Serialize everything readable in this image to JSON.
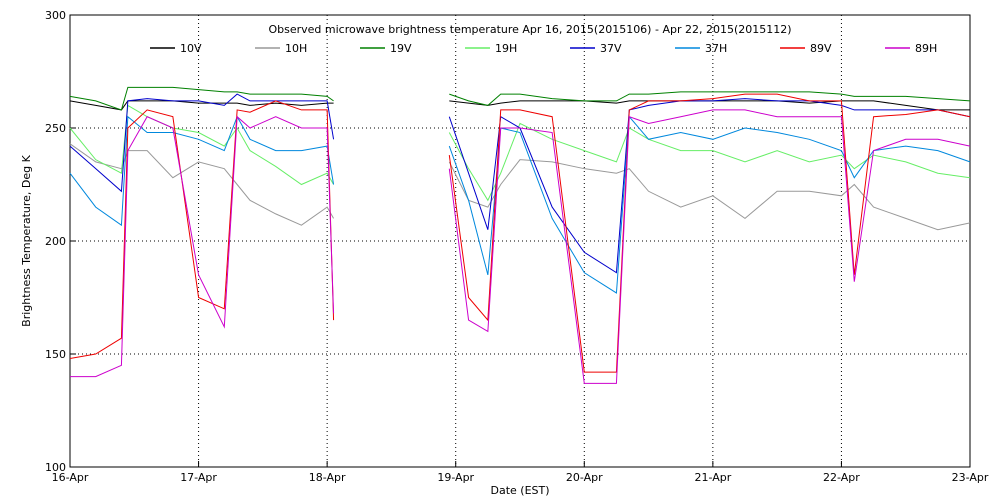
{
  "chart_data": {
    "type": "line",
    "title": "Observed microwave brightness temperature Apr 16, 2015(2015106) - Apr 22, 2015(2015112)",
    "x_label": "Date (EST)",
    "y_label": "Brightness Temperature, Deg K",
    "x": [
      0,
      0.2,
      0.4,
      0.45,
      0.6,
      0.8,
      1.0,
      1.2,
      1.3,
      1.4,
      1.6,
      1.8,
      2.0,
      2.05,
      2.5,
      2.95,
      3.1,
      3.25,
      3.35,
      3.5,
      3.75,
      4.0,
      4.25,
      4.35,
      4.5,
      4.75,
      5.0,
      5.25,
      5.5,
      5.75,
      6.0,
      6.1,
      6.25,
      6.5,
      6.75,
      7.0
    ],
    "xlim": [
      0,
      7
    ],
    "xticks": [
      {
        "value": 0,
        "label": "16-Apr"
      },
      {
        "value": 1,
        "label": "17-Apr"
      },
      {
        "value": 2,
        "label": "18-Apr"
      },
      {
        "value": 3,
        "label": "19-Apr"
      },
      {
        "value": 4,
        "label": "20-Apr"
      },
      {
        "value": 5,
        "label": "21-Apr"
      },
      {
        "value": 6,
        "label": "22-Apr"
      },
      {
        "value": 7,
        "label": "23-Apr"
      }
    ],
    "ylim": [
      100,
      300
    ],
    "yticks": [
      100,
      150,
      200,
      250,
      300
    ],
    "grid": true,
    "series": [
      {
        "name": "10V",
        "color": "#000000",
        "values": [
          262,
          260,
          258,
          262,
          262,
          262,
          261,
          261,
          261,
          260,
          261,
          260,
          261,
          261,
          null,
          262,
          261,
          260,
          261,
          262,
          262,
          262,
          261,
          262,
          262,
          262,
          262,
          262,
          262,
          261,
          262,
          262,
          262,
          260,
          258,
          258
        ]
      },
      {
        "name": "10H",
        "color": "#999999",
        "values": [
          243,
          235,
          232,
          240,
          240,
          228,
          235,
          232,
          225,
          218,
          212,
          207,
          215,
          210,
          null,
          235,
          218,
          215,
          225,
          236,
          235,
          232,
          230,
          232,
          222,
          215,
          220,
          210,
          222,
          222,
          220,
          225,
          215,
          210,
          205,
          208
        ]
      },
      {
        "name": "19V",
        "color": "#008000",
        "values": [
          264,
          262,
          258,
          268,
          268,
          268,
          267,
          266,
          266,
          265,
          265,
          265,
          264,
          262,
          null,
          265,
          262,
          260,
          265,
          265,
          263,
          262,
          262,
          265,
          265,
          266,
          266,
          266,
          266,
          266,
          265,
          264,
          264,
          264,
          263,
          262
        ]
      },
      {
        "name": "19H",
        "color": "#66ee66",
        "values": [
          250,
          236,
          230,
          260,
          255,
          250,
          248,
          242,
          250,
          240,
          233,
          225,
          230,
          225,
          null,
          248,
          232,
          218,
          230,
          252,
          245,
          240,
          235,
          250,
          245,
          240,
          240,
          235,
          240,
          235,
          238,
          232,
          238,
          235,
          230,
          228
        ]
      },
      {
        "name": "37V",
        "color": "#0000cc",
        "values": [
          242,
          232,
          222,
          262,
          263,
          262,
          262,
          260,
          265,
          262,
          262,
          262,
          262,
          245,
          null,
          255,
          230,
          205,
          255,
          250,
          215,
          195,
          186,
          258,
          260,
          262,
          262,
          263,
          262,
          262,
          260,
          258,
          258,
          258,
          258,
          255
        ]
      },
      {
        "name": "37H",
        "color": "#0088dd",
        "values": [
          230,
          215,
          207,
          255,
          248,
          248,
          245,
          240,
          255,
          245,
          240,
          240,
          242,
          225,
          null,
          242,
          218,
          185,
          250,
          248,
          210,
          186,
          177,
          255,
          245,
          248,
          245,
          250,
          248,
          245,
          240,
          228,
          240,
          242,
          240,
          235
        ]
      },
      {
        "name": "89V",
        "color": "#ee0000",
        "values": [
          148,
          150,
          157,
          250,
          258,
          255,
          175,
          170,
          258,
          257,
          262,
          258,
          258,
          165,
          null,
          238,
          175,
          165,
          258,
          258,
          255,
          142,
          142,
          258,
          262,
          262,
          263,
          265,
          265,
          262,
          262,
          185,
          255,
          256,
          258,
          255
        ]
      },
      {
        "name": "89H",
        "color": "#cc00cc",
        "values": [
          140,
          140,
          145,
          240,
          255,
          250,
          185,
          162,
          255,
          250,
          255,
          250,
          250,
          168,
          null,
          232,
          165,
          160,
          250,
          250,
          248,
          137,
          137,
          255,
          252,
          255,
          258,
          258,
          255,
          255,
          255,
          182,
          240,
          245,
          245,
          242
        ]
      }
    ]
  }
}
